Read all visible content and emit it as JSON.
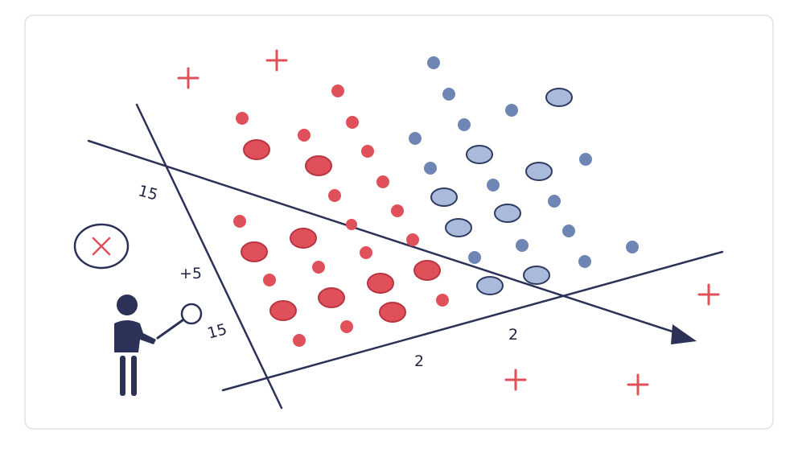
{
  "labels": [
    "15",
    "+5",
    "15",
    "2",
    "2"
  ]
}
